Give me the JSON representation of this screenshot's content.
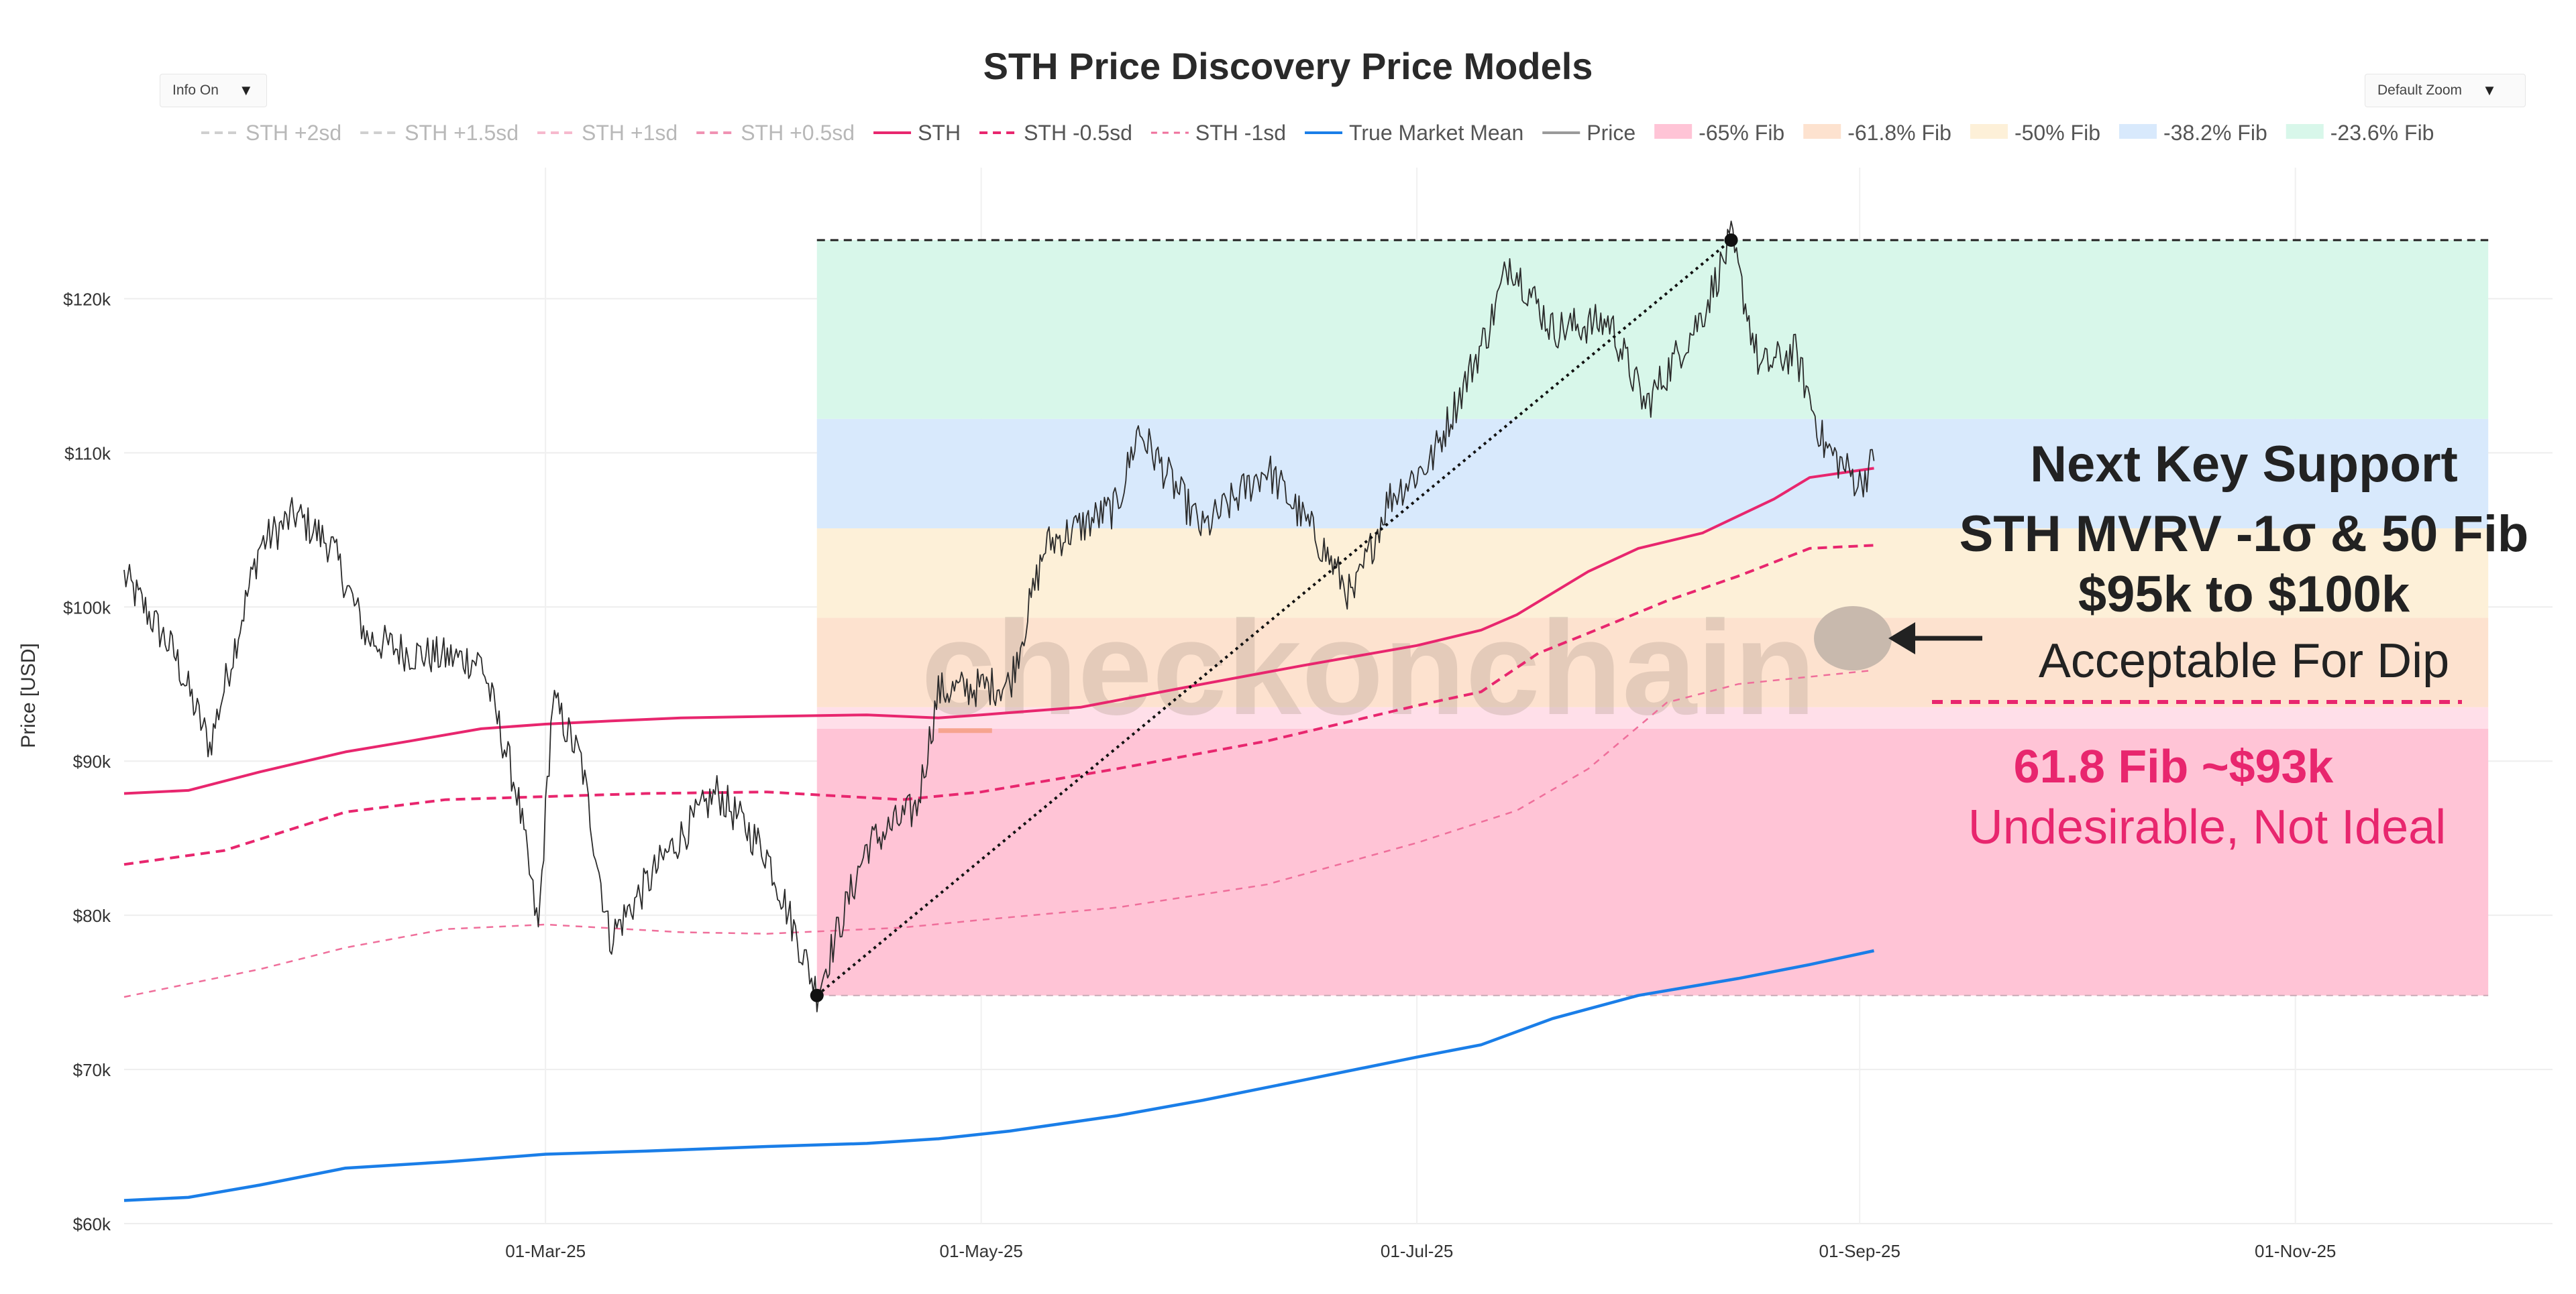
{
  "controls": {
    "info_label": "Info On",
    "zoom_label": "Default Zoom",
    "caret": "▼"
  },
  "colors": {
    "sth": "#e8266e",
    "tmm": "#1a7ee8",
    "price": "#2b2b2b",
    "fib_65": "#ffc4d6",
    "fib_618": "#fde2cf",
    "fib_50": "#fdf0d8",
    "fib_382": "#d8e9fc",
    "fib_236": "#d8f7ea",
    "support_text": "#222222",
    "fib618_text": "#e8266e",
    "bubble": "#c8b9ad"
  },
  "watermark": "checkonchain",
  "chart_data": {
    "type": "line",
    "title": "STH Price Discovery Price Models",
    "ylabel": "Price [USD]",
    "xlabel": "",
    "ylim": [
      60000,
      128500
    ],
    "xlim": [
      "2025-01-01",
      "2025-12-07"
    ],
    "yticks": [
      60000,
      70000,
      80000,
      90000,
      100000,
      110000,
      120000
    ],
    "ytick_labels": [
      "$60k",
      "$70k",
      "$80k",
      "$90k",
      "$100k",
      "$110k",
      "$120k"
    ],
    "xticks": [
      "2025-03-01",
      "2025-05-01",
      "2025-07-01",
      "2025-09-01",
      "2025-11-01"
    ],
    "xtick_labels": [
      "01-Mar-25",
      "01-May-25",
      "01-Jul-25",
      "01-Sep-25",
      "01-Nov-25"
    ],
    "grid": true,
    "legend_position": "top",
    "legend": [
      {
        "label": "STH +2sd",
        "style": "dash",
        "color": "#cfcfcf",
        "hidden": true
      },
      {
        "label": "STH +1.5sd",
        "style": "dash",
        "color": "#cfcfcf",
        "hidden": true
      },
      {
        "label": "STH +1sd",
        "style": "dash",
        "color": "#f6b9cd",
        "hidden": true
      },
      {
        "label": "STH +0.5sd",
        "style": "dash",
        "color": "#f092b3",
        "hidden": true
      },
      {
        "label": "STH",
        "style": "solid",
        "color": "#e8266e"
      },
      {
        "label": "STH -0.5sd",
        "style": "dash",
        "color": "#e8266e"
      },
      {
        "label": "STH -1sd",
        "style": "dash-thin",
        "color": "#ef6f9b"
      },
      {
        "label": "True Market Mean",
        "style": "solid",
        "color": "#1a7ee8"
      },
      {
        "label": "Price",
        "style": "solid",
        "color": "#9a9a9a"
      },
      {
        "label": "-65% Fib",
        "style": "box",
        "color": "#ffc4d6"
      },
      {
        "label": "-61.8% Fib",
        "style": "box",
        "color": "#fde2cf"
      },
      {
        "label": "-50% Fib",
        "style": "box",
        "color": "#fdf0d8"
      },
      {
        "label": "-38.2% Fib",
        "style": "box",
        "color": "#d8e9fc"
      },
      {
        "label": "-23.6% Fib",
        "style": "box",
        "color": "#d8f7ea"
      }
    ],
    "fib": {
      "x_start": "2025-04-08",
      "x_end": "2025-11-28",
      "low": 74800,
      "high": 123800,
      "bands": [
        {
          "name": "-65% Fib",
          "from": 74800,
          "to": 92100,
          "color": "#ffc4d6"
        },
        {
          "name": "-61.8% Fib",
          "from": 92100,
          "to": 93500,
          "color": "#ffdfe9"
        },
        {
          "name": "-50% Fib",
          "from": 93500,
          "to": 99300,
          "color": "#fde2cf"
        },
        {
          "name": "-50% Fib upper",
          "from": 99300,
          "to": 105100,
          "color": "#fdf0d8"
        },
        {
          "name": "-38.2% Fib",
          "from": 105100,
          "to": 112200,
          "color": "#d8e9fc"
        },
        {
          "name": "-23.6% Fib",
          "from": 112200,
          "to": 123800,
          "color": "#d8f7ea"
        }
      ]
    },
    "trend_line": {
      "from": [
        "2025-04-08",
        74800
      ],
      "to": [
        "2025-08-14",
        123800
      ]
    },
    "series": [
      {
        "name": "STH",
        "points": [
          [
            "2025-01-01",
            87900
          ],
          [
            "2025-01-10",
            88100
          ],
          [
            "2025-01-20",
            89300
          ],
          [
            "2025-02-01",
            90600
          ],
          [
            "2025-02-10",
            91300
          ],
          [
            "2025-02-20",
            92100
          ],
          [
            "2025-03-01",
            92400
          ],
          [
            "2025-03-10",
            92600
          ],
          [
            "2025-03-20",
            92800
          ],
          [
            "2025-04-01",
            92900
          ],
          [
            "2025-04-15",
            93000
          ],
          [
            "2025-04-25",
            92800
          ],
          [
            "2025-05-01",
            93000
          ],
          [
            "2025-05-15",
            93500
          ],
          [
            "2025-06-01",
            95000
          ],
          [
            "2025-06-15",
            96200
          ],
          [
            "2025-07-01",
            97500
          ],
          [
            "2025-07-10",
            98500
          ],
          [
            "2025-07-15",
            99500
          ],
          [
            "2025-07-25",
            102300
          ],
          [
            "2025-08-01",
            103800
          ],
          [
            "2025-08-10",
            104800
          ],
          [
            "2025-08-20",
            107000
          ],
          [
            "2025-08-25",
            108400
          ],
          [
            "2025-09-03",
            109000
          ]
        ]
      },
      {
        "name": "STH -0.5sd",
        "points": [
          [
            "2025-01-01",
            83300
          ],
          [
            "2025-01-15",
            84200
          ],
          [
            "2025-02-01",
            86700
          ],
          [
            "2025-02-15",
            87500
          ],
          [
            "2025-03-01",
            87700
          ],
          [
            "2025-03-15",
            87900
          ],
          [
            "2025-04-01",
            88000
          ],
          [
            "2025-04-20",
            87500
          ],
          [
            "2025-05-01",
            88000
          ],
          [
            "2025-05-20",
            89500
          ],
          [
            "2025-06-10",
            91300
          ],
          [
            "2025-07-01",
            93600
          ],
          [
            "2025-07-10",
            94500
          ],
          [
            "2025-07-18",
            97000
          ],
          [
            "2025-07-25",
            98300
          ],
          [
            "2025-08-05",
            100400
          ],
          [
            "2025-08-15",
            102000
          ],
          [
            "2025-08-25",
            103800
          ],
          [
            "2025-09-03",
            104000
          ]
        ]
      },
      {
        "name": "STH -1sd",
        "points": [
          [
            "2025-01-01",
            74700
          ],
          [
            "2025-01-20",
            76500
          ],
          [
            "2025-02-01",
            77900
          ],
          [
            "2025-02-15",
            79100
          ],
          [
            "2025-03-01",
            79400
          ],
          [
            "2025-03-20",
            78900
          ],
          [
            "2025-04-01",
            78800
          ],
          [
            "2025-04-20",
            79200
          ],
          [
            "2025-05-01",
            79700
          ],
          [
            "2025-05-20",
            80500
          ],
          [
            "2025-06-10",
            82000
          ],
          [
            "2025-07-01",
            84700
          ],
          [
            "2025-07-15",
            86800
          ],
          [
            "2025-07-25",
            89500
          ],
          [
            "2025-08-05",
            93800
          ],
          [
            "2025-08-15",
            95000
          ],
          [
            "2025-09-03",
            95900
          ]
        ]
      },
      {
        "name": "True Market Mean",
        "points": [
          [
            "2025-01-01",
            61500
          ],
          [
            "2025-01-10",
            61700
          ],
          [
            "2025-01-20",
            62500
          ],
          [
            "2025-02-01",
            63600
          ],
          [
            "2025-02-15",
            64000
          ],
          [
            "2025-03-01",
            64500
          ],
          [
            "2025-03-15",
            64700
          ],
          [
            "2025-04-01",
            65000
          ],
          [
            "2025-04-15",
            65200
          ],
          [
            "2025-04-25",
            65500
          ],
          [
            "2025-05-05",
            66000
          ],
          [
            "2025-05-20",
            67000
          ],
          [
            "2025-06-01",
            68000
          ],
          [
            "2025-06-15",
            69300
          ],
          [
            "2025-07-01",
            70800
          ],
          [
            "2025-07-10",
            71600
          ],
          [
            "2025-07-20",
            73300
          ],
          [
            "2025-08-01",
            74800
          ],
          [
            "2025-08-15",
            75900
          ],
          [
            "2025-08-25",
            76800
          ],
          [
            "2025-09-03",
            77700
          ]
        ]
      }
    ],
    "price_keypoints": [
      [
        "2025-01-01",
        102000
      ],
      [
        "2025-01-08",
        97000
      ],
      [
        "2025-01-13",
        91000
      ],
      [
        "2025-01-20",
        104000
      ],
      [
        "2025-01-25",
        106000
      ],
      [
        "2025-01-30",
        104000
      ],
      [
        "2025-02-04",
        98000
      ],
      [
        "2025-02-10",
        97000
      ],
      [
        "2025-02-20",
        96500
      ],
      [
        "2025-02-25",
        88000
      ],
      [
        "2025-02-28",
        79000
      ],
      [
        "2025-03-02",
        94000
      ],
      [
        "2025-03-06",
        90000
      ],
      [
        "2025-03-10",
        78500
      ],
      [
        "2025-03-18",
        84000
      ],
      [
        "2025-03-25",
        88000
      ],
      [
        "2025-04-01",
        84000
      ],
      [
        "2025-04-08",
        75000
      ],
      [
        "2025-04-15",
        84500
      ],
      [
        "2025-04-22",
        87000
      ],
      [
        "2025-04-25",
        94500
      ],
      [
        "2025-05-05",
        95000
      ],
      [
        "2025-05-10",
        104000
      ],
      [
        "2025-05-20",
        106500
      ],
      [
        "2025-05-23",
        111500
      ],
      [
        "2025-06-01",
        105000
      ],
      [
        "2025-06-10",
        109000
      ],
      [
        "2025-06-17",
        104500
      ],
      [
        "2025-06-22",
        100500
      ],
      [
        "2025-06-27",
        107000
      ],
      [
        "2025-07-03",
        109500
      ],
      [
        "2025-07-11",
        118000
      ],
      [
        "2025-07-14",
        122500
      ],
      [
        "2025-07-20",
        118000
      ],
      [
        "2025-07-28",
        118500
      ],
      [
        "2025-08-02",
        113000
      ],
      [
        "2025-08-10",
        119000
      ],
      [
        "2025-08-14",
        123800
      ],
      [
        "2025-08-18",
        115500
      ],
      [
        "2025-08-23",
        116500
      ],
      [
        "2025-08-27",
        110500
      ],
      [
        "2025-09-01",
        108000
      ],
      [
        "2025-09-03",
        109500
      ]
    ],
    "annotations": [
      {
        "id": "support_l1",
        "text": "Next Key Support"
      },
      {
        "id": "support_l2",
        "text": "STH MVRV -1σ & 50 Fib"
      },
      {
        "id": "support_l3",
        "text": "$95k to $100k"
      },
      {
        "id": "support_l4",
        "text": "Acceptable For Dip"
      },
      {
        "id": "fib_l1",
        "text": "61.8 Fib ~$93k"
      },
      {
        "id": "fib_l2",
        "text": "Undesirable, Not Ideal"
      }
    ]
  }
}
